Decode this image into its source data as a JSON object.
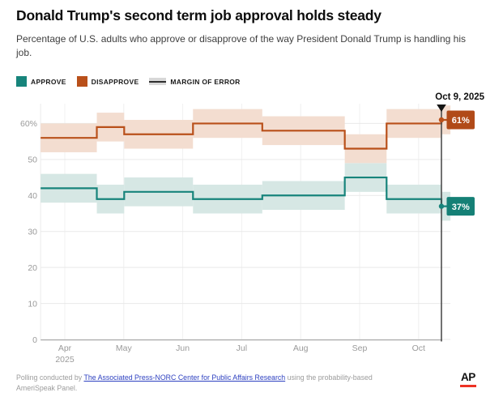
{
  "header": {
    "title": "Donald Trump's second term job approval holds steady",
    "subtitle": "Percentage of U.S. adults who approve or disapprove of the way President Donald Trump is handling his job."
  },
  "legend": {
    "items": [
      {
        "label": "APPROVE",
        "color": "#17847b",
        "type": "swatch"
      },
      {
        "label": "DISAPPROVE",
        "color": "#b9501a",
        "type": "swatch"
      },
      {
        "label": "MARGIN OF ERROR",
        "color": "#d8d8d8",
        "type": "band"
      }
    ]
  },
  "chart_data": {
    "type": "line",
    "subtype": "step-lines-with-margin-of-error-bands",
    "x_axis": {
      "unit": "months_from_apr_2025",
      "tick_labels": [
        "Apr",
        "May",
        "Jun",
        "Jul",
        "Aug",
        "Sep",
        "Oct"
      ],
      "tick_positions": [
        0,
        1,
        2,
        3,
        4,
        5,
        6
      ],
      "year_label": "2025",
      "start": -0.41,
      "end": 6.54
    },
    "y_axis": {
      "tick_values": [
        0,
        10,
        20,
        30,
        40,
        50,
        60
      ],
      "tick_labels": [
        "0",
        "10",
        "20",
        "30",
        "40",
        "50",
        "60%"
      ],
      "range": [
        0,
        65.5
      ],
      "grid": true
    },
    "margin_of_error": 4,
    "x_steps": [
      -0.41,
      0.543,
      1.007,
      2.174,
      3.349,
      4.748,
      5.457,
      6.387
    ],
    "series": [
      {
        "name": "APPROVE",
        "color": "#17847b",
        "band_color": "#d6e7e4",
        "values": [
          42,
          39,
          41,
          39,
          40,
          45,
          39,
          37
        ]
      },
      {
        "name": "DISAPPROVE",
        "color": "#b9501a",
        "band_color": "#f3ddd0",
        "values": [
          56,
          59,
          57,
          60,
          58,
          53,
          60,
          61
        ]
      }
    ],
    "end_annotation": {
      "date_label": "Oct 9, 2025",
      "x": 6.387,
      "labels": [
        {
          "series": "DISAPPROVE",
          "text": "61%",
          "box_color": "#b14a18"
        },
        {
          "series": "APPROVE",
          "text": "37%",
          "box_color": "#158076"
        }
      ]
    },
    "legend_position": "top-left"
  },
  "footer": {
    "prefix": "Polling conducted by ",
    "link_text": "The Associated Press-NORC Center for Public Affairs Research",
    "suffix": " using the probability-based AmeriSpeak Panel.",
    "logo_text": "AP"
  }
}
